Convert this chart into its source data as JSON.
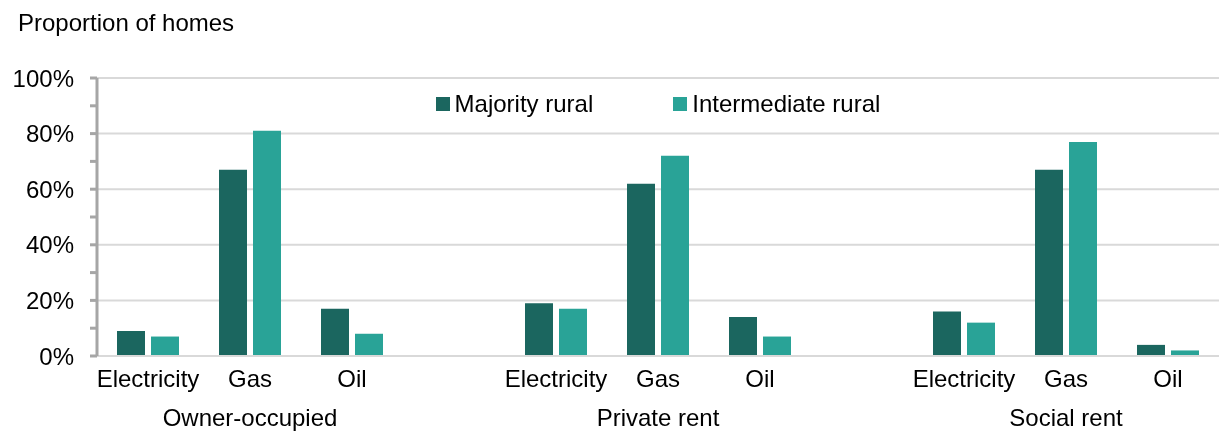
{
  "chart_data": {
    "type": "bar",
    "ylabel": "Proportion of homes",
    "categories": [
      "Electricity",
      "Gas",
      "Oil",
      null,
      "Electricity",
      "Gas",
      "Oil",
      null,
      "Electricity",
      "Gas",
      "Oil"
    ],
    "series": [
      {
        "name": "Majority rural",
        "color": "#1b665f",
        "values": [
          9,
          67,
          17,
          null,
          19,
          62,
          14,
          null,
          16,
          67,
          4
        ]
      },
      {
        "name": "Intermediate rural",
        "color": "#29a397",
        "values": [
          7,
          81,
          8,
          null,
          17,
          72,
          7,
          null,
          12,
          77,
          2
        ]
      }
    ],
    "ylim": [
      0,
      100
    ],
    "yticks": [
      {
        "value": 0,
        "label": "0%"
      },
      {
        "value": 10,
        "label": null
      },
      {
        "value": 20,
        "label": "20%"
      },
      {
        "value": 30,
        "label": null
      },
      {
        "value": 40,
        "label": "40%"
      },
      {
        "value": 50,
        "label": null
      },
      {
        "value": 60,
        "label": "60%"
      },
      {
        "value": 70,
        "label": null
      },
      {
        "value": 80,
        "label": "80%"
      },
      {
        "value": 90,
        "label": null
      },
      {
        "value": 100,
        "label": "100%"
      }
    ],
    "grid": "y",
    "legend": "top",
    "annotations": [
      "Owner-occupied",
      "Private rent",
      "Social rent"
    ]
  }
}
